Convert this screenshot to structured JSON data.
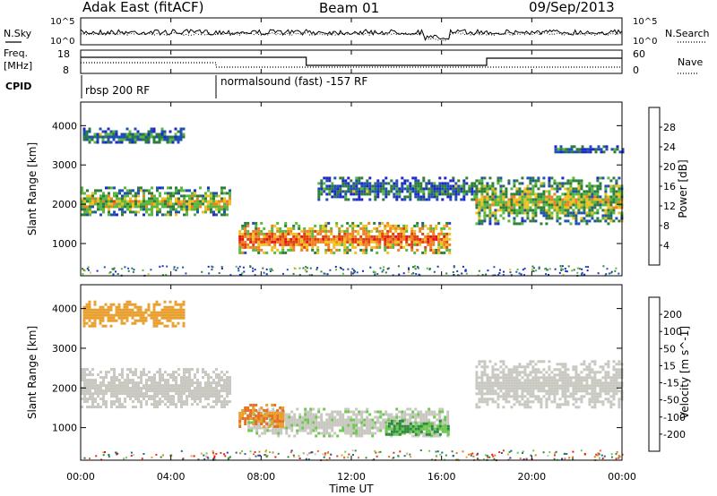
{
  "header": {
    "title": "Adak East (fitACF)",
    "beam": "Beam 01",
    "date": "09/Sep/2013"
  },
  "summary": {
    "nsky_label": "N.Sky",
    "nsearch_label": "N.Search",
    "noise_ticks_left": [
      "10^5",
      "10^0"
    ],
    "noise_ticks_right": [
      "10^5",
      "10^0"
    ],
    "freq_label_line1": "Freq.",
    "freq_label_line2": "[MHz]",
    "freq_ticks": [
      "18",
      "8"
    ],
    "nave_ticks": [
      "60",
      "0"
    ],
    "nave_label": "Nave",
    "cpid_label": "CPID",
    "cpid_segments": [
      "rbsp 200 RF",
      "normalsound (fast) -157 RF"
    ]
  },
  "colors": {
    "power_scale": [
      "#1e28c8",
      "#2050b4",
      "#2e7d3c",
      "#58b840",
      "#f0c020",
      "#f08020",
      "#e04010",
      "#e81010"
    ],
    "velocity_scale": [
      "#2040b0",
      "#206880",
      "#2c8c3c",
      "#6ec850",
      "#c8c8c0",
      "#e8a030",
      "#e87020",
      "#e83010",
      "#e81010"
    ],
    "ground_scatter": "#c8c8c0"
  },
  "chart_data": [
    {
      "type": "heatmap",
      "title": "Power",
      "ylabel": "Slant Range [km]",
      "xlabel": "Time UT",
      "x_ticks": [
        "00:00",
        "04:00",
        "08:00",
        "12:00",
        "16:00",
        "20:00",
        "00:00"
      ],
      "y_ticks": [
        "1000",
        "2000",
        "3000",
        "4000"
      ],
      "xlim_hours": [
        0,
        24
      ],
      "ylim_km": [
        180,
        4600
      ],
      "colorbar": {
        "label": "Power [dB]",
        "ticks": [
          "4",
          "8",
          "12",
          "16",
          "20",
          "24",
          "28"
        ],
        "range": [
          0,
          30
        ]
      },
      "features": [
        {
          "name": "early high band",
          "t_start": 0.1,
          "t_end": 4.6,
          "r_lo": 3550,
          "r_hi": 3950,
          "level": 7
        },
        {
          "name": "morning backscatter",
          "t_start": 0.0,
          "t_end": 6.6,
          "r_lo": 1700,
          "r_hi": 2450,
          "level": 14
        },
        {
          "name": "main ionospheric echo",
          "t_start": 7.0,
          "t_end": 16.3,
          "r_lo": 750,
          "r_hi": 1550,
          "level": 22
        },
        {
          "name": "afternoon band",
          "t_start": 10.5,
          "t_end": 17.5,
          "r_lo": 2100,
          "r_hi": 2700,
          "level": 6
        },
        {
          "name": "evening backscatter",
          "t_start": 17.5,
          "t_end": 24.0,
          "r_lo": 1500,
          "r_hi": 2700,
          "level": 13
        },
        {
          "name": "late high band",
          "t_start": 21.0,
          "t_end": 24.0,
          "r_lo": 3300,
          "r_hi": 3500,
          "level": 5
        }
      ]
    },
    {
      "type": "heatmap",
      "title": "Velocity",
      "ylabel": "Slant Range [km]",
      "xlabel": "Time UT",
      "x_ticks": [
        "00:00",
        "04:00",
        "08:00",
        "12:00",
        "16:00",
        "20:00",
        "00:00"
      ],
      "y_ticks": [
        "1000",
        "2000",
        "3000",
        "4000"
      ],
      "xlim_hours": [
        0,
        24
      ],
      "ylim_km": [
        180,
        4600
      ],
      "colorbar": {
        "label": "Velocity [m s^-1]",
        "ticks": [
          "200",
          "100",
          "50",
          "15",
          "-15",
          "-50",
          "-100",
          "-200"
        ],
        "range": [
          -250,
          250
        ]
      },
      "features": [
        {
          "name": "morning ground scatter",
          "t_start": 0.0,
          "t_end": 6.6,
          "r_lo": 1500,
          "r_hi": 2500,
          "velocity": 0
        },
        {
          "name": "early band",
          "t_start": 0.1,
          "t_end": 4.6,
          "r_lo": 3550,
          "r_hi": 4200,
          "velocity": -30
        },
        {
          "name": "main echo",
          "t_start": 7.4,
          "t_end": 16.3,
          "r_lo": 800,
          "r_hi": 1500,
          "velocity": 5
        },
        {
          "name": "main echo receding edge",
          "t_start": 7.0,
          "t_end": 9.0,
          "r_lo": 1000,
          "r_hi": 1600,
          "velocity": -60
        },
        {
          "name": "main echo approaching edge",
          "t_start": 13.5,
          "t_end": 16.3,
          "r_lo": 800,
          "r_hi": 1200,
          "velocity": 60
        },
        {
          "name": "evening ground scatter",
          "t_start": 17.5,
          "t_end": 24.0,
          "r_lo": 1500,
          "r_hi": 2700,
          "velocity": 0
        }
      ]
    }
  ]
}
